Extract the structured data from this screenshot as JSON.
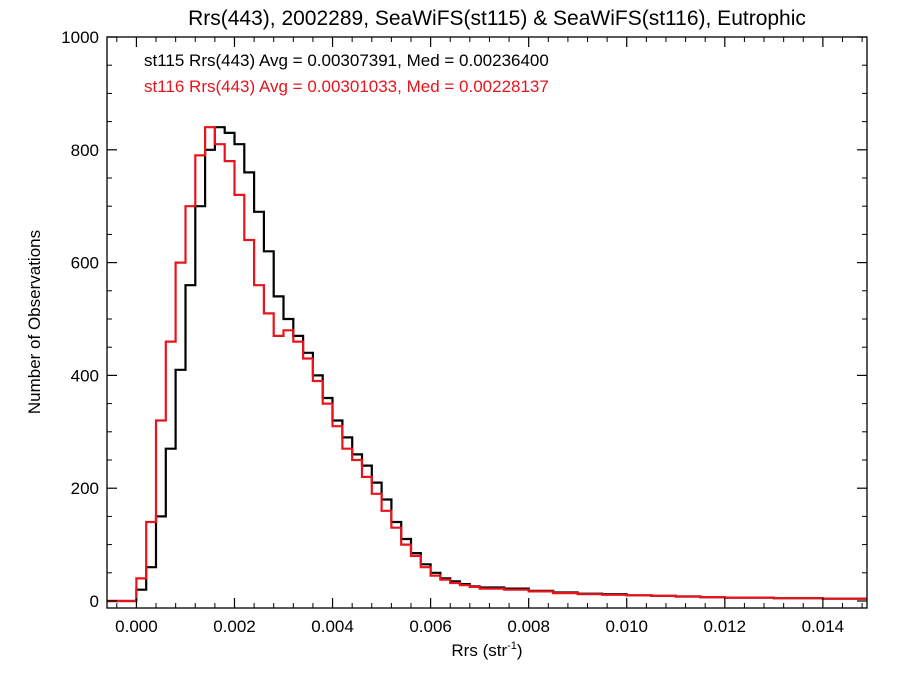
{
  "chart_data": {
    "type": "line",
    "step": true,
    "title": "Rrs(443), 2002289, SeaWiFS(st115) & SeaWiFS(st116), Eutrophic",
    "xlabel_main": "Rrs (str",
    "xlabel_sup": "-1",
    "xlabel_close": ")",
    "ylabel": "Number of Observations",
    "xlim": [
      -0.0006,
      0.0149
    ],
    "ylim": [
      0,
      1000
    ],
    "xticks": [
      "0.000",
      "0.002",
      "0.004",
      "0.006",
      "0.008",
      "0.010",
      "0.012",
      "0.014"
    ],
    "xtick_values": [
      0,
      0.002,
      0.004,
      0.006,
      0.008,
      0.01,
      0.012,
      0.014
    ],
    "yticks": [
      "0",
      "200",
      "400",
      "600",
      "800",
      "1000"
    ],
    "ytick_values": [
      0,
      200,
      400,
      600,
      800,
      1000
    ],
    "grid": false,
    "annotations": [
      {
        "text": "st115 Rrs(443) Avg = 0.00307391, Med = 0.00236400",
        "color": "#000000"
      },
      {
        "text": "st116 Rrs(443) Avg = 0.00301033, Med = 0.00228137",
        "color": "#e8141c"
      }
    ],
    "series": [
      {
        "color": "#000000",
        "x": [
          -0.0006,
          -0.0001,
          0.0,
          0.0002,
          0.0004,
          0.0006,
          0.0008,
          0.001,
          0.0012,
          0.0014,
          0.0016,
          0.0018,
          0.002,
          0.0022,
          0.0024,
          0.0026,
          0.0028,
          0.003,
          0.0032,
          0.0034,
          0.0036,
          0.0038,
          0.004,
          0.0042,
          0.0044,
          0.0046,
          0.0048,
          0.005,
          0.0052,
          0.0054,
          0.0056,
          0.0058,
          0.006,
          0.0062,
          0.0064,
          0.0066,
          0.0068,
          0.007,
          0.0075,
          0.008,
          0.0085,
          0.009,
          0.0095,
          0.01,
          0.0105,
          0.011,
          0.0115,
          0.012,
          0.0125,
          0.013,
          0.0135,
          0.014,
          0.0145,
          0.0149
        ],
        "y": [
          0,
          0,
          20,
          60,
          150,
          270,
          410,
          560,
          700,
          800,
          840,
          830,
          810,
          760,
          690,
          620,
          540,
          500,
          470,
          440,
          400,
          360,
          320,
          290,
          260,
          240,
          210,
          180,
          140,
          110,
          85,
          65,
          50,
          40,
          35,
          30,
          26,
          24,
          22,
          18,
          15,
          13,
          12,
          10,
          9,
          8,
          7,
          6,
          6,
          5,
          5,
          4,
          4,
          4
        ]
      },
      {
        "color": "#e8141c",
        "x": [
          -0.0006,
          -0.0001,
          0.0,
          0.0002,
          0.0004,
          0.0006,
          0.0008,
          0.001,
          0.0012,
          0.0014,
          0.0016,
          0.0018,
          0.002,
          0.0022,
          0.0024,
          0.0026,
          0.0028,
          0.003,
          0.0032,
          0.0034,
          0.0036,
          0.0038,
          0.004,
          0.0042,
          0.0044,
          0.0046,
          0.0048,
          0.005,
          0.0052,
          0.0054,
          0.0056,
          0.0058,
          0.006,
          0.0062,
          0.0064,
          0.0066,
          0.0068,
          0.007,
          0.0075,
          0.008,
          0.0085,
          0.009,
          0.0095,
          0.01,
          0.0105,
          0.011,
          0.0115,
          0.012,
          0.0125,
          0.013,
          0.0135,
          0.014,
          0.0145,
          0.0149
        ],
        "y": [
          0,
          0,
          40,
          140,
          320,
          460,
          600,
          700,
          790,
          840,
          810,
          780,
          720,
          640,
          560,
          510,
          470,
          480,
          460,
          430,
          390,
          350,
          310,
          270,
          250,
          220,
          190,
          160,
          130,
          100,
          80,
          60,
          45,
          38,
          32,
          28,
          25,
          22,
          20,
          17,
          14,
          12,
          11,
          10,
          9,
          8,
          7,
          6,
          6,
          5,
          5,
          4,
          4,
          4
        ]
      }
    ]
  }
}
